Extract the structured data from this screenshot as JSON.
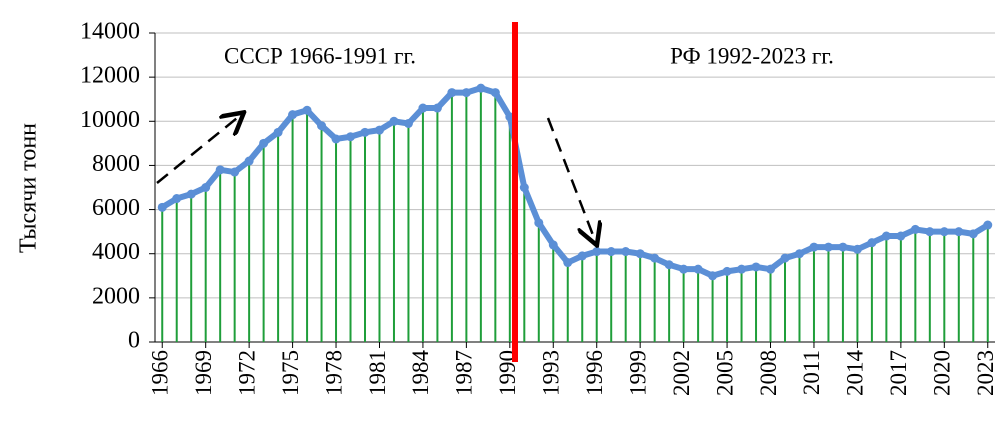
{
  "chart_data": {
    "type": "line",
    "y_label": "Тысячи тонн",
    "annotations": [
      "СССР 1966-1991 гг.",
      "РФ 1992-2023 гг."
    ],
    "categories": [
      "1966",
      null,
      null,
      "1969",
      null,
      null,
      "1972",
      null,
      null,
      "1975",
      null,
      null,
      "1978",
      null,
      null,
      "1981",
      null,
      null,
      "1984",
      null,
      null,
      "1987",
      null,
      null,
      "1990",
      null,
      null,
      "1993",
      null,
      null,
      "1996",
      null,
      null,
      "1999",
      null,
      null,
      "2002",
      null,
      null,
      "2005",
      null,
      null,
      "2008",
      null,
      null,
      "2011",
      null,
      null,
      "2014",
      null,
      null,
      "2017",
      null,
      null,
      "2020",
      null,
      null,
      "2023"
    ],
    "values": [
      6100,
      6500,
      6700,
      7000,
      7800,
      7700,
      8200,
      9000,
      9500,
      10300,
      10500,
      9800,
      9200,
      9300,
      9500,
      9600,
      10000,
      9900,
      10600,
      10600,
      11300,
      11300,
      11500,
      11300,
      10200,
      7000,
      5400,
      4400,
      3600,
      3900,
      4100,
      4100,
      4100,
      4000,
      3800,
      3500,
      3300,
      3300,
      3000,
      3200,
      3300,
      3400,
      3300,
      3800,
      4000,
      4300,
      4300,
      4300,
      4200,
      4500,
      4800,
      4800,
      5100,
      5000,
      5000,
      5000,
      4900,
      5300
    ],
    "color": "#5b8fd6",
    "drop_color": "#1f9e3a",
    "ylim": [
      0,
      14000
    ],
    "yticks": [
      0,
      2000,
      4000,
      6000,
      8000,
      10000,
      12000,
      14000
    ],
    "grid": true
  }
}
